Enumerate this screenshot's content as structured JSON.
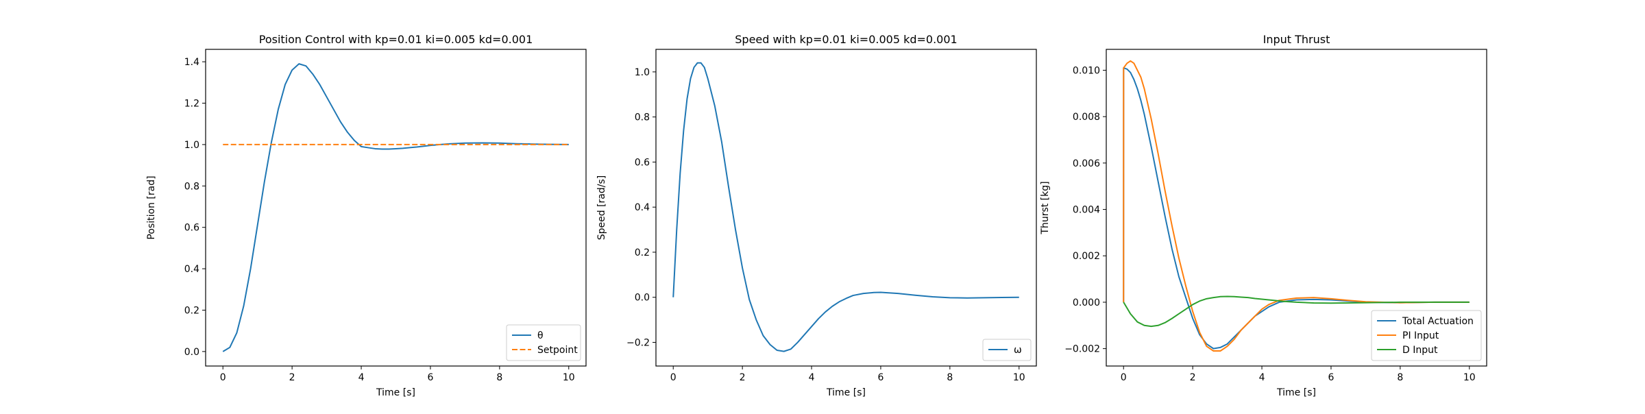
{
  "chart_data": [
    {
      "type": "line",
      "title": "Position Control with kp=0.01 ki=0.005 kd=0.001",
      "xlabel": "Time [s]",
      "ylabel": "Position [rad]",
      "xlim": [
        -0.5,
        10.5
      ],
      "ylim": [
        -0.07,
        1.46
      ],
      "xticks": [
        0,
        2,
        4,
        6,
        8,
        10
      ],
      "yticks": [
        0.0,
        0.2,
        0.4,
        0.6,
        0.8,
        1.0,
        1.2,
        1.4
      ],
      "ytick_labels": [
        "0.0",
        "0.2",
        "0.4",
        "0.6",
        "0.8",
        "1.0",
        "1.2",
        "1.4"
      ],
      "grid": false,
      "legend": "lower-right",
      "series": [
        {
          "name": "θ",
          "color": "#1f77b4",
          "style": "solid",
          "x": [
            0,
            0.2,
            0.4,
            0.6,
            0.8,
            1.0,
            1.2,
            1.4,
            1.6,
            1.8,
            2.0,
            2.2,
            2.4,
            2.6,
            2.8,
            3.0,
            3.2,
            3.4,
            3.6,
            3.8,
            4.0,
            4.2,
            4.4,
            4.6,
            4.8,
            5.0,
            5.2,
            5.4,
            5.6,
            5.8,
            6.0,
            6.5,
            7.0,
            7.5,
            8.0,
            8.5,
            9.0,
            9.5,
            10.0
          ],
          "y": [
            0.0,
            0.02,
            0.09,
            0.22,
            0.4,
            0.61,
            0.82,
            1.01,
            1.17,
            1.29,
            1.36,
            1.39,
            1.38,
            1.34,
            1.29,
            1.23,
            1.17,
            1.11,
            1.06,
            1.02,
            0.99,
            0.985,
            0.98,
            0.978,
            0.978,
            0.98,
            0.982,
            0.985,
            0.988,
            0.992,
            0.996,
            1.003,
            1.007,
            1.008,
            1.007,
            1.004,
            1.002,
            1.001,
            1.0
          ]
        },
        {
          "name": "Setpoint",
          "color": "#ff7f0e",
          "style": "dashed",
          "x": [
            0,
            10
          ],
          "y": [
            1.0,
            1.0
          ]
        }
      ]
    },
    {
      "type": "line",
      "title": "Speed with kp=0.01 ki=0.005 kd=0.001",
      "xlabel": "Time [s]",
      "ylabel": "Speed [rad/s]",
      "xlim": [
        -0.5,
        10.5
      ],
      "ylim": [
        -0.305,
        1.1
      ],
      "xticks": [
        0,
        2,
        4,
        6,
        8,
        10
      ],
      "yticks": [
        -0.2,
        0.0,
        0.2,
        0.4,
        0.6,
        0.8,
        1.0
      ],
      "ytick_labels": [
        "−0.2",
        "0.0",
        "0.2",
        "0.4",
        "0.6",
        "0.8",
        "1.0"
      ],
      "grid": false,
      "legend": "lower-right",
      "series": [
        {
          "name": "ω",
          "color": "#1f77b4",
          "style": "solid",
          "x": [
            0,
            0.1,
            0.2,
            0.3,
            0.4,
            0.5,
            0.6,
            0.7,
            0.8,
            0.9,
            1.0,
            1.2,
            1.4,
            1.6,
            1.8,
            2.0,
            2.2,
            2.4,
            2.6,
            2.8,
            3.0,
            3.2,
            3.4,
            3.6,
            3.8,
            4.0,
            4.2,
            4.4,
            4.6,
            4.8,
            5.0,
            5.2,
            5.5,
            5.8,
            6.0,
            6.5,
            7.0,
            7.5,
            8.0,
            8.5,
            9.0,
            9.5,
            10.0
          ],
          "y": [
            0.0,
            0.3,
            0.55,
            0.74,
            0.88,
            0.97,
            1.02,
            1.04,
            1.04,
            1.02,
            0.97,
            0.85,
            0.69,
            0.49,
            0.3,
            0.13,
            -0.01,
            -0.1,
            -0.17,
            -0.21,
            -0.235,
            -0.24,
            -0.23,
            -0.2,
            -0.165,
            -0.13,
            -0.095,
            -0.065,
            -0.04,
            -0.02,
            -0.005,
            0.008,
            0.017,
            0.021,
            0.022,
            0.017,
            0.009,
            0.002,
            -0.002,
            -0.003,
            -0.002,
            -0.001,
            0.0
          ]
        }
      ]
    },
    {
      "type": "line",
      "title": "Input Thrust",
      "xlabel": "Time [s]",
      "ylabel": "Thurst [kg]",
      "xlim": [
        -0.5,
        10.5
      ],
      "ylim": [
        -0.00275,
        0.0109
      ],
      "xticks": [
        0,
        2,
        4,
        6,
        8,
        10
      ],
      "yticks": [
        -0.002,
        0.0,
        0.002,
        0.004,
        0.006,
        0.008,
        0.01
      ],
      "ytick_labels": [
        "−0.002",
        "0.000",
        "0.002",
        "0.004",
        "0.006",
        "0.008",
        "0.010"
      ],
      "grid": false,
      "legend": "lower-right",
      "series": [
        {
          "name": "Total Actuation",
          "color": "#1f77b4",
          "style": "solid",
          "x": [
            0,
            0.001,
            0.1,
            0.2,
            0.3,
            0.4,
            0.5,
            0.6,
            0.8,
            1.0,
            1.2,
            1.4,
            1.6,
            1.8,
            2.0,
            2.2,
            2.4,
            2.6,
            2.8,
            3.0,
            3.2,
            3.4,
            3.6,
            3.8,
            4.0,
            4.2,
            4.5,
            5.0,
            5.5,
            6.0,
            6.5,
            7.0,
            8.0,
            9.0,
            10.0
          ],
          "y": [
            0.0,
            0.0101,
            0.01005,
            0.0099,
            0.0096,
            0.0092,
            0.0087,
            0.0081,
            0.0067,
            0.0052,
            0.0037,
            0.0023,
            0.0011,
            0.0002,
            -0.0007,
            -0.0014,
            -0.0018,
            -0.002,
            -0.00195,
            -0.0018,
            -0.0015,
            -0.0012,
            -0.0009,
            -0.0006,
            -0.0004,
            -0.0002,
            0.0,
            0.0001,
            0.00012,
            0.0001,
            5e-05,
            0.0,
            -2e-05,
            0.0,
            0.0
          ]
        },
        {
          "name": "PI Input",
          "color": "#ff7f0e",
          "style": "solid",
          "x": [
            0,
            0.001,
            0.1,
            0.2,
            0.3,
            0.4,
            0.5,
            0.6,
            0.8,
            1.0,
            1.2,
            1.4,
            1.6,
            1.8,
            2.0,
            2.2,
            2.4,
            2.6,
            2.8,
            3.0,
            3.2,
            3.4,
            3.6,
            3.8,
            4.0,
            4.2,
            4.5,
            5.0,
            5.5,
            6.0,
            6.5,
            7.0,
            8.0,
            9.0,
            10.0
          ],
          "y": [
            0.0,
            0.0101,
            0.0103,
            0.0104,
            0.0103,
            0.01,
            0.0097,
            0.0092,
            0.0079,
            0.0064,
            0.0048,
            0.0033,
            0.0019,
            0.0007,
            -0.0004,
            -0.0013,
            -0.0019,
            -0.0021,
            -0.0021,
            -0.0019,
            -0.0016,
            -0.0012,
            -0.0009,
            -0.0006,
            -0.0003,
            -0.0001,
            8e-05,
            0.00018,
            0.0002,
            0.00015,
            8e-05,
            2e-05,
            -2e-05,
            0.0,
            0.0
          ]
        },
        {
          "name": "D Input",
          "color": "#2ca02c",
          "style": "solid",
          "x": [
            0,
            0.2,
            0.4,
            0.6,
            0.8,
            1.0,
            1.2,
            1.4,
            1.6,
            1.8,
            2.0,
            2.2,
            2.4,
            2.6,
            2.8,
            3.0,
            3.2,
            3.4,
            3.6,
            3.8,
            4.0,
            4.2,
            4.4,
            4.6,
            4.8,
            5.0,
            5.5,
            6.0,
            7.0,
            8.0,
            9.0,
            10.0
          ],
          "y": [
            0.0,
            -0.0005,
            -0.00085,
            -0.001,
            -0.00104,
            -0.001,
            -0.00088,
            -0.0007,
            -0.0005,
            -0.0003,
            -0.0001,
            5e-05,
            0.00015,
            0.0002,
            0.00024,
            0.00025,
            0.00024,
            0.00022,
            0.0002,
            0.00016,
            0.00013,
            0.0001,
            7e-05,
            4e-05,
            2e-05,
            0.0,
            -3e-05,
            -4e-05,
            -2e-05,
            0.0,
            0.0,
            0.0
          ]
        }
      ]
    }
  ]
}
